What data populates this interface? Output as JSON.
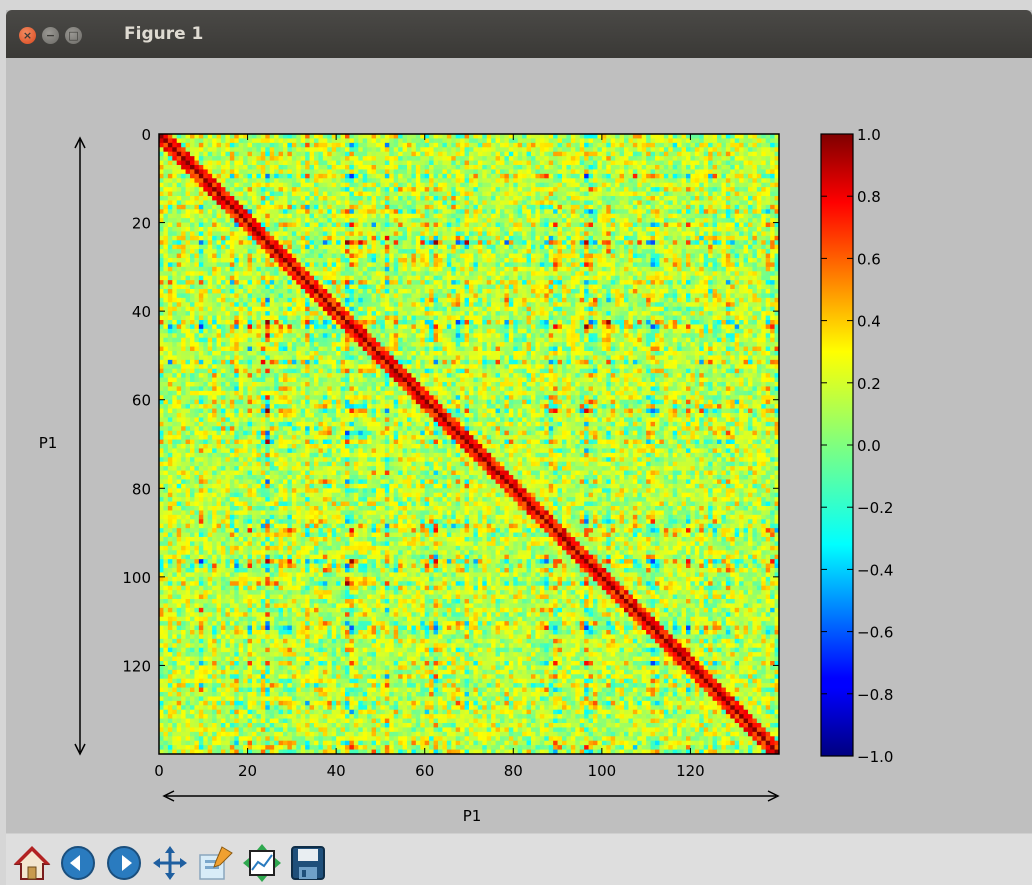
{
  "window": {
    "title": "Figure 1",
    "close_glyph": "×",
    "minimize_glyph": "−",
    "maximize_glyph": "□"
  },
  "toolbar": {
    "buttons": [
      {
        "name": "home-icon",
        "tooltip": "Reset original view"
      },
      {
        "name": "back-arrow-icon",
        "tooltip": "Back to previous view"
      },
      {
        "name": "forward-arrow-icon",
        "tooltip": "Forward to next view"
      },
      {
        "name": "pan-icon",
        "tooltip": "Pan axes"
      },
      {
        "name": "zoom-icon",
        "tooltip": "Zoom to rectangle"
      },
      {
        "name": "subplots-icon",
        "tooltip": "Configure subplots"
      },
      {
        "name": "save-icon",
        "tooltip": "Save the figure"
      }
    ]
  },
  "chart_data": {
    "type": "heatmap",
    "title": "",
    "matrix_size": 140,
    "x_range": [
      0,
      140
    ],
    "y_range": [
      0,
      140
    ],
    "y_inverted": true,
    "x_ticks": [
      "0",
      "20",
      "40",
      "60",
      "80",
      "100",
      "120"
    ],
    "y_ticks": [
      "0",
      "20",
      "40",
      "60",
      "80",
      "100",
      "120"
    ],
    "xlabel": "P1",
    "ylabel": "P1",
    "colormap": "jet",
    "vmin": -1.0,
    "vmax": 1.0,
    "colorbar_ticks": [
      "1.0",
      "0.8",
      "0.6",
      "0.4",
      "0.2",
      "0.0",
      "−0.2",
      "−0.4",
      "−0.6",
      "−0.8",
      "−1.0"
    ],
    "diagonal_value": 1.0,
    "strong_feature_indices": [
      27,
      42,
      43,
      44,
      48,
      61,
      76,
      84,
      88,
      96,
      97,
      111,
      122
    ],
    "grid": false
  }
}
